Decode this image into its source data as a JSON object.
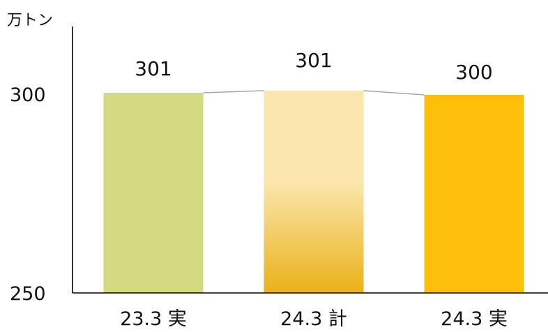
{
  "chart_data": {
    "type": "bar",
    "unit_label": "万トン",
    "categories": [
      "23.3 実",
      "24.3 計",
      "24.3 実"
    ],
    "values": [
      301,
      301,
      300
    ],
    "data_labels": [
      "301",
      "301",
      "300"
    ],
    "ylim": [
      250,
      300
    ],
    "y_ticks": [
      {
        "value": 250,
        "label": "250"
      },
      {
        "value": 300,
        "label": "300"
      }
    ],
    "connector_lines": true,
    "grid": false,
    "legend": "none",
    "colors": {
      "bar_1": "#d4da7f",
      "bar_2_top": "#fbe6ad",
      "bar_2_bottom": "#eab118",
      "bar_3": "#fdbf09",
      "connector": "#a6a6a6",
      "axis": "#000000"
    }
  }
}
